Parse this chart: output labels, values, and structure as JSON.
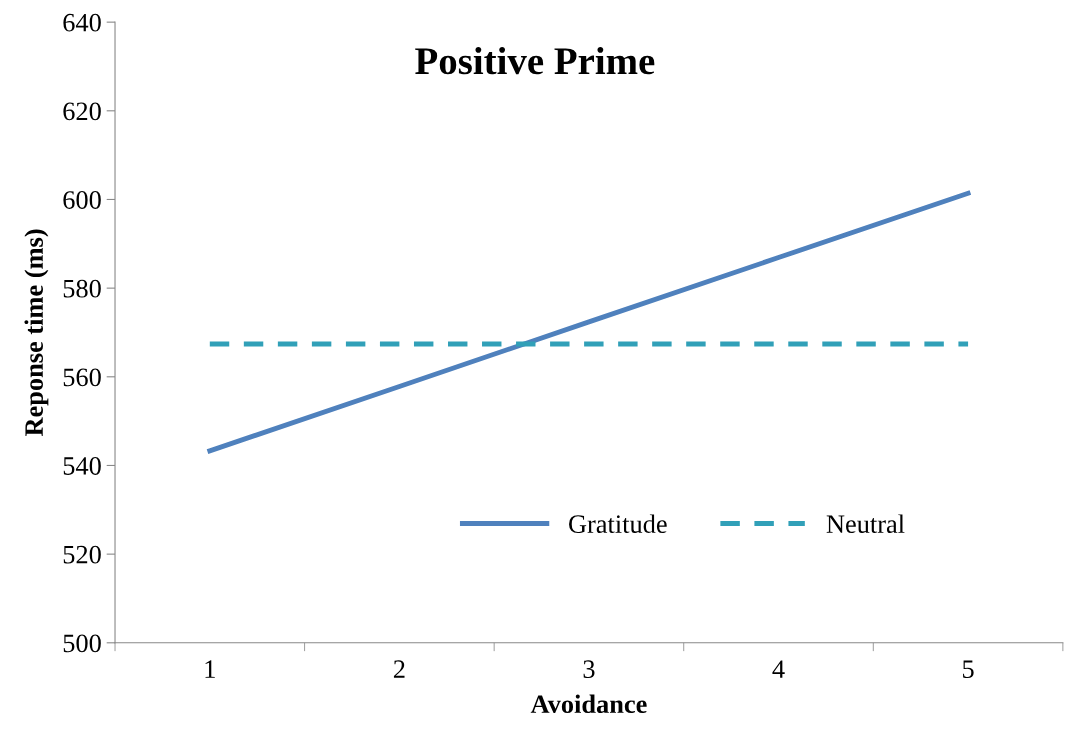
{
  "chart_data": {
    "type": "line",
    "title": "Positive Prime",
    "xlabel": "Avoidance",
    "ylabel": "Reponse time (ms)",
    "categories": [
      "1",
      "2",
      "3",
      "4",
      "5"
    ],
    "series": [
      {
        "name": "Gratitude",
        "color": "#4f81bd",
        "line_style": "solid",
        "values": [
          543.3,
          557.8,
          572.4,
          586.9,
          601.4
        ]
      },
      {
        "name": "Neutral",
        "color": "#31a0b8",
        "line_style": "dashed",
        "values": [
          567.4,
          567.4,
          567.4,
          567.4,
          567.4
        ]
      }
    ],
    "ylim": [
      500,
      640
    ],
    "yticks": [
      500,
      520,
      540,
      560,
      580,
      600,
      620,
      640
    ],
    "grid": false,
    "legend": "bottom",
    "marker": "none"
  }
}
